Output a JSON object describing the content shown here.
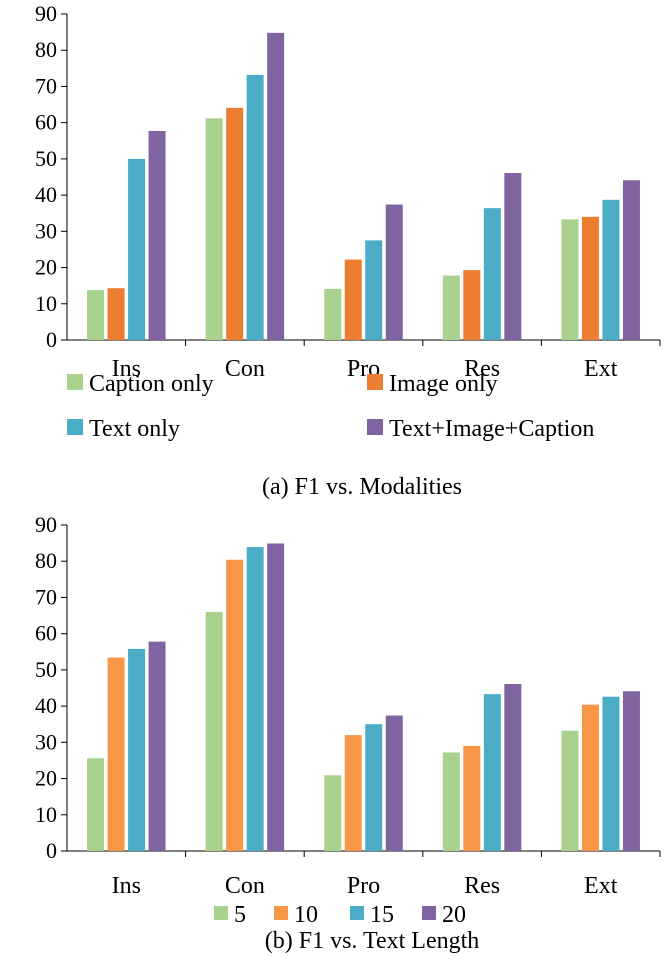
{
  "chart_data": [
    {
      "type": "bar",
      "caption": "(a) F1 vs. Modalities",
      "categories": [
        "Ins",
        "Con",
        "Pro",
        "Res",
        "Ext"
      ],
      "ylim": [
        0,
        90
      ],
      "yticks": [
        0,
        10,
        20,
        30,
        40,
        50,
        60,
        70,
        80,
        90
      ],
      "grid": false,
      "legend_placement": "bottom",
      "series": [
        {
          "name": "Caption only",
          "color": "#a9d18e",
          "values": [
            13.8,
            61.2,
            14.1,
            17.8,
            33.3
          ]
        },
        {
          "name": "Image only",
          "color": "#ed7d31",
          "values": [
            14.3,
            64.1,
            22.2,
            19.3,
            34.0
          ]
        },
        {
          "name": "Text only",
          "color": "#4bacc6",
          "values": [
            50.0,
            73.2,
            27.5,
            36.4,
            38.7
          ]
        },
        {
          "name": "Text+Image+Caption",
          "color": "#8064a2",
          "values": [
            57.7,
            84.8,
            37.4,
            46.1,
            44.1
          ]
        }
      ]
    },
    {
      "type": "bar",
      "caption": "(b) F1 vs. Text Length",
      "categories": [
        "Ins",
        "Con",
        "Pro",
        "Res",
        "Ext"
      ],
      "ylim": [
        0,
        90
      ],
      "yticks": [
        0,
        10,
        20,
        30,
        40,
        50,
        60,
        70,
        80,
        90
      ],
      "grid": false,
      "legend_placement": "bottom",
      "series": [
        {
          "name": "5",
          "color": "#a9d18e",
          "values": [
            25.6,
            66.0,
            20.9,
            27.2,
            33.2
          ]
        },
        {
          "name": "10",
          "color": "#f79646",
          "values": [
            53.4,
            80.4,
            32.0,
            29.0,
            40.4
          ]
        },
        {
          "name": "15",
          "color": "#4bacc6",
          "values": [
            55.8,
            83.9,
            35.0,
            43.3,
            42.6
          ]
        },
        {
          "name": "20",
          "color": "#8064a2",
          "values": [
            57.8,
            84.9,
            37.4,
            46.1,
            44.1
          ]
        }
      ]
    }
  ]
}
